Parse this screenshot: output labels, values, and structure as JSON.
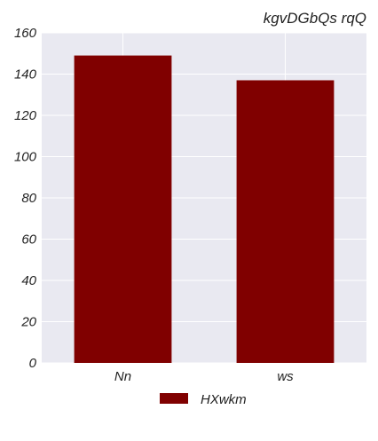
{
  "chart_data": {
    "type": "bar",
    "title": "kgvDGbQs rqQ",
    "xlabel": "",
    "ylabel": "",
    "categories": [
      "Nn",
      "ws"
    ],
    "series": [
      {
        "name": "HXwkm",
        "values": [
          149,
          137
        ]
      }
    ],
    "ylim": [
      0,
      160
    ],
    "yticks": [
      0,
      20,
      40,
      60,
      80,
      100,
      120,
      140,
      160
    ],
    "grid": true,
    "legend_position": "bottom-center",
    "colors": {
      "bar": "#800000",
      "plot_background": "#e9e9f1",
      "grid": "#ffffff",
      "text": "#222222"
    }
  }
}
